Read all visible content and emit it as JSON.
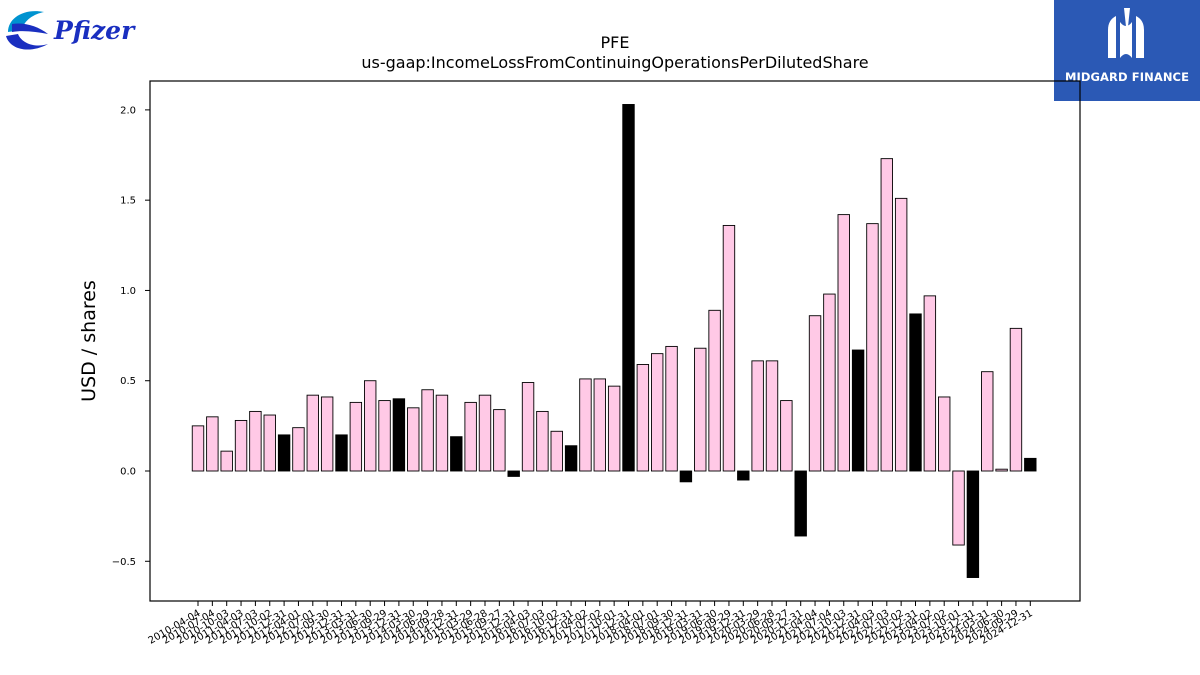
{
  "logos": {
    "left": {
      "text": "Pfizer",
      "icon": "pfizer-swirl-icon",
      "color": "#1a2fc0"
    },
    "right": {
      "text": "MIDGARD FINANCE",
      "icon": "midgard-m-icon",
      "background": "#2b59b5"
    }
  },
  "colors": {
    "positive_fill": "#ffc9e6",
    "highlight_fill": "#000000",
    "edge": "#000000"
  },
  "chart_data": {
    "type": "bar",
    "title": "PFE",
    "subtitle": "us-gaap:IncomeLossFromContinuingOperationsPerDilutedShare",
    "xlabel": "",
    "ylabel": "USD / shares",
    "ylim": [
      -0.72,
      2.16
    ],
    "yticks": [
      "−0.5",
      "0.0",
      "0.5",
      "1.0",
      "1.5",
      "2.0"
    ],
    "ytick_values": [
      -0.5,
      0.0,
      0.5,
      1.0,
      1.5,
      2.0
    ],
    "grid": false,
    "legend": "none",
    "categories": [
      "2010-04-04",
      "2010-07-04",
      "2010-10-03",
      "2011-04-03",
      "2011-07-03",
      "2011-10-02",
      "2011-12-31",
      "2012-04-01",
      "2012-07-01",
      "2012-09-30",
      "2012-12-31",
      "2013-03-31",
      "2013-06-30",
      "2013-09-29",
      "2013-12-31",
      "2014-03-30",
      "2014-06-29",
      "2014-09-28",
      "2014-12-31",
      "2015-03-29",
      "2015-06-28",
      "2015-09-27",
      "2015-12-31",
      "2016-04-03",
      "2016-07-03",
      "2016-10-02",
      "2016-12-31",
      "2017-04-02",
      "2017-07-02",
      "2017-10-01",
      "2017-12-31",
      "2018-04-01",
      "2018-07-01",
      "2018-09-30",
      "2018-12-31",
      "2019-03-31",
      "2019-06-30",
      "2019-09-29",
      "2019-12-31",
      "2020-03-29",
      "2020-06-28",
      "2020-09-27",
      "2020-12-31",
      "2021-04-04",
      "2021-07-04",
      "2021-10-03",
      "2021-12-31",
      "2022-04-03",
      "2022-07-03",
      "2022-10-02",
      "2022-12-31",
      "2023-04-02",
      "2023-07-02",
      "2023-10-01",
      "2023-12-31",
      "2024-03-31",
      "2024-06-30",
      "2024-09-29",
      "2024-12-31"
    ],
    "values": [
      0.25,
      0.3,
      0.11,
      0.28,
      0.33,
      0.31,
      0.2,
      0.24,
      0.42,
      0.41,
      0.2,
      0.38,
      0.5,
      0.39,
      0.4,
      0.35,
      0.45,
      0.42,
      0.19,
      0.38,
      0.42,
      0.34,
      -0.03,
      0.49,
      0.33,
      0.22,
      0.14,
      0.51,
      0.51,
      0.47,
      2.03,
      0.59,
      0.65,
      0.69,
      -0.06,
      0.68,
      0.89,
      1.36,
      -0.05,
      0.61,
      0.61,
      0.39,
      -0.36,
      0.86,
      0.98,
      1.42,
      0.67,
      1.37,
      1.73,
      1.51,
      0.87,
      0.97,
      0.41,
      -0.41,
      -0.59,
      0.55,
      0.01,
      0.79,
      0.07
    ],
    "highlighted": [
      6,
      10,
      14,
      18,
      22,
      26,
      30,
      34,
      38,
      42,
      46,
      50,
      54,
      58
    ]
  }
}
